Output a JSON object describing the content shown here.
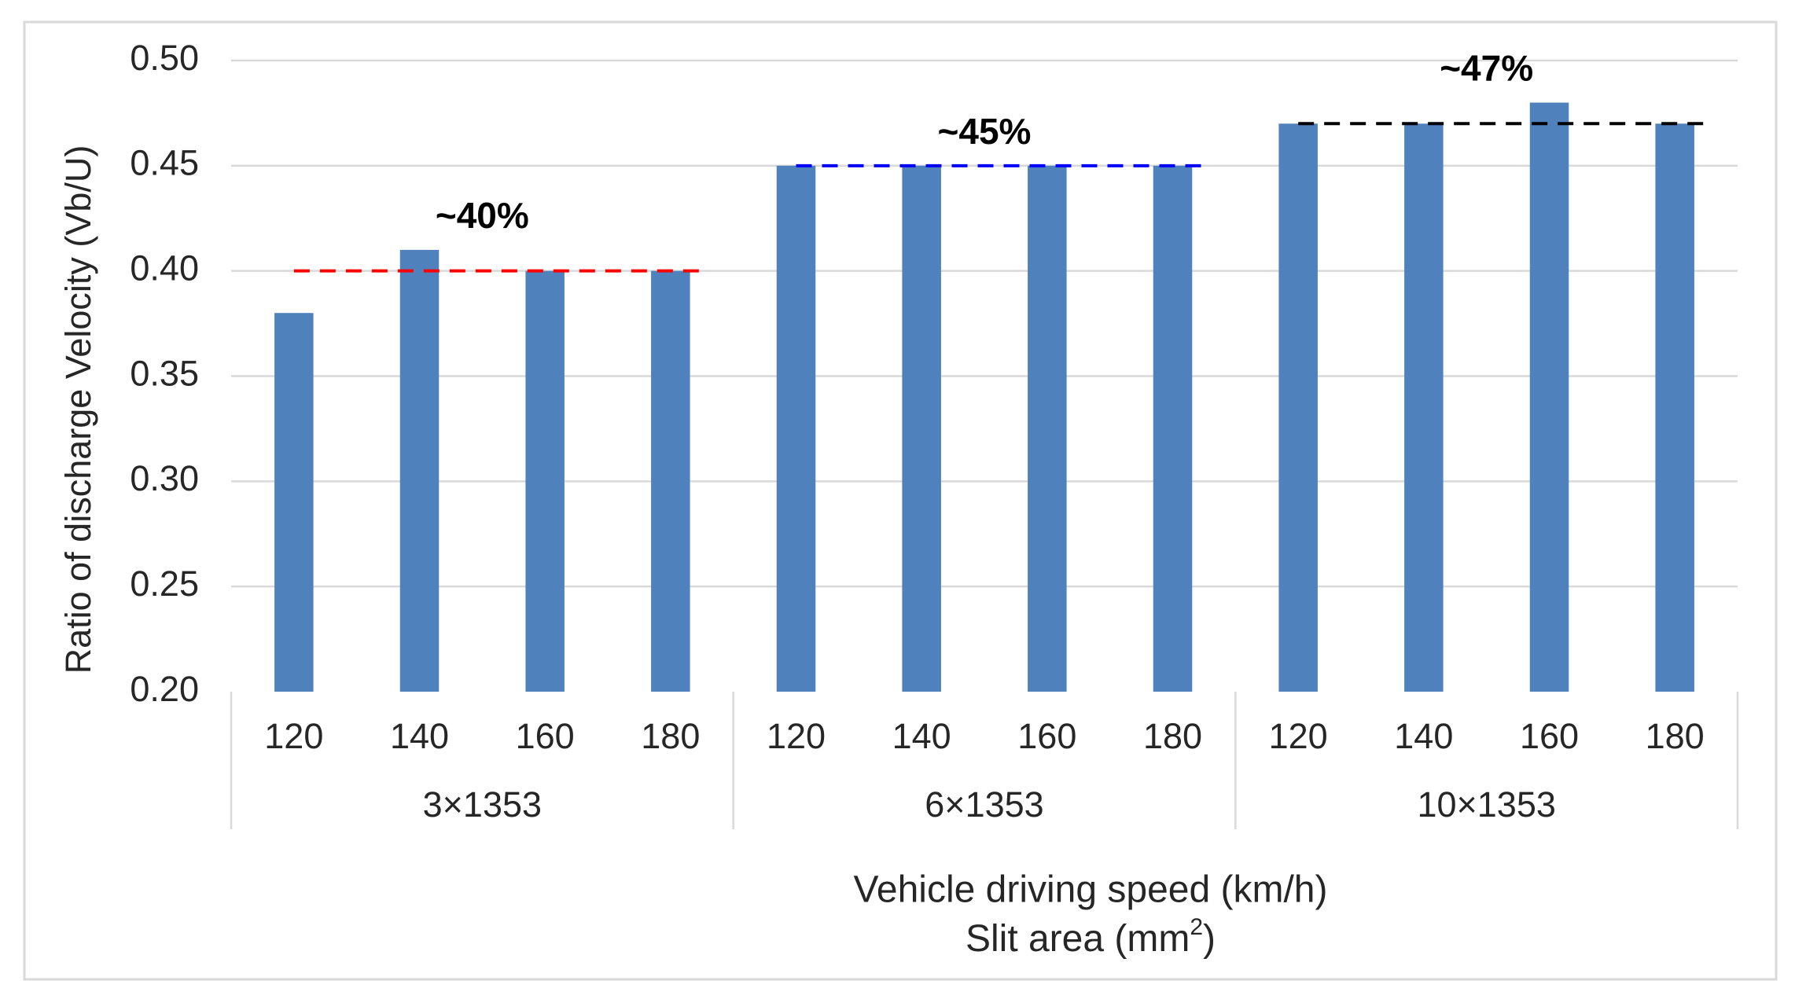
{
  "chart_data": {
    "type": "bar",
    "title": "",
    "ylabel": "Ratio of discharge Velocity (Vb/U)",
    "xlabel_line1": "Vehicle driving speed (km/h)",
    "xlabel_line2_main": "Slit area (mm",
    "xlabel_line2_sup": "2",
    "xlabel_line2_close": ")",
    "ylim": [
      0.2,
      0.5
    ],
    "yticks": [
      "0.20",
      "0.25",
      "0.30",
      "0.35",
      "0.40",
      "0.45",
      "0.50"
    ],
    "grid": true,
    "series_color": "#4f81bd",
    "groups": [
      {
        "label": "3×1353",
        "categories": [
          "120",
          "140",
          "160",
          "180"
        ],
        "values": [
          0.38,
          0.41,
          0.4,
          0.4
        ],
        "reference_value": 0.4,
        "reference_color": "#ff0000",
        "annotation": "~40%"
      },
      {
        "label": "6×1353",
        "categories": [
          "120",
          "140",
          "160",
          "180"
        ],
        "values": [
          0.45,
          0.45,
          0.45,
          0.45
        ],
        "reference_value": 0.45,
        "reference_color": "#0000ff",
        "annotation": "~45%"
      },
      {
        "label": "10×1353",
        "categories": [
          "120",
          "140",
          "160",
          "180"
        ],
        "values": [
          0.47,
          0.47,
          0.48,
          0.47
        ],
        "reference_value": 0.47,
        "reference_color": "#000000",
        "annotation": "~47%"
      }
    ]
  }
}
